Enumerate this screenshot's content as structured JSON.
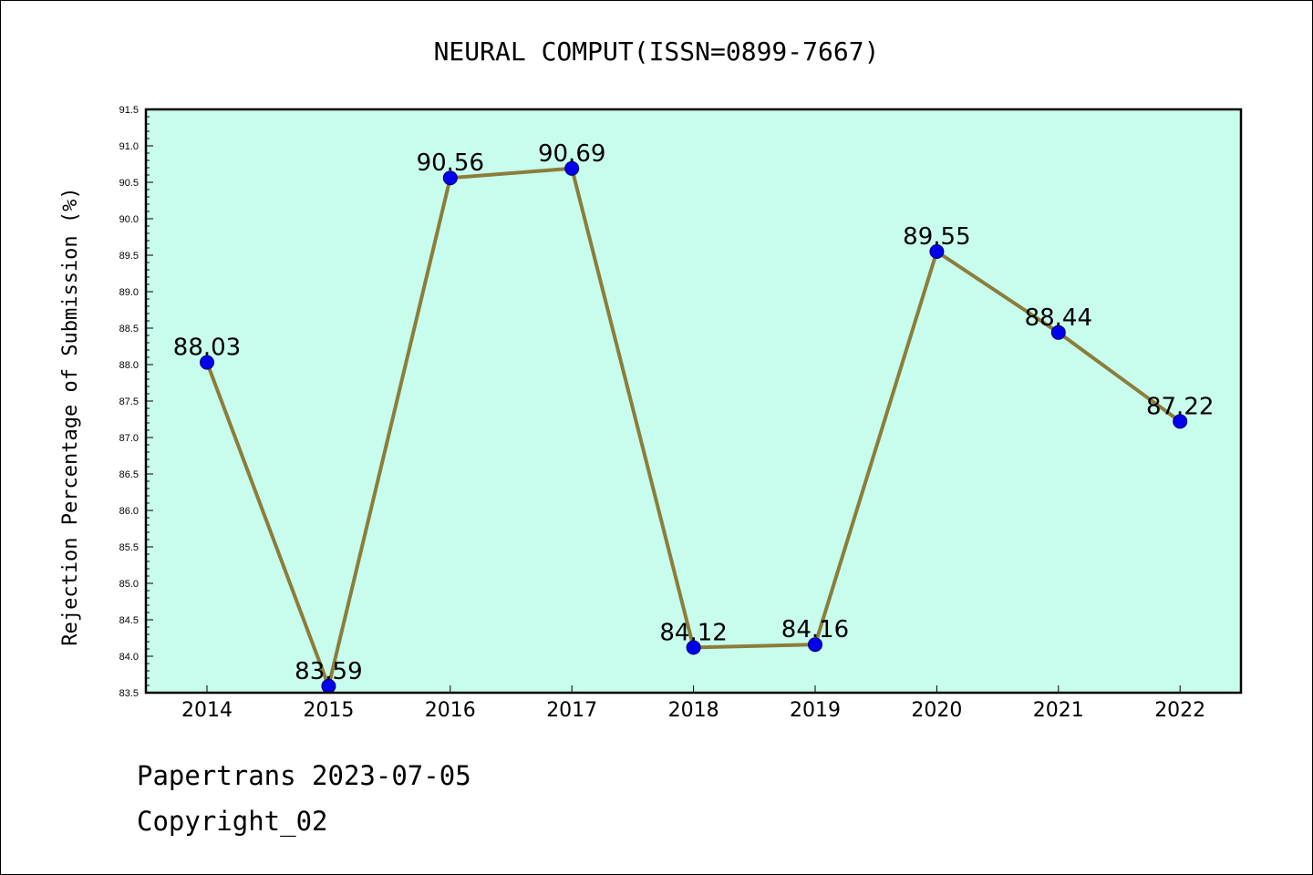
{
  "chart_data": {
    "type": "line",
    "title": "NEURAL COMPUT(ISSN=0899-7667)",
    "xlabel": "",
    "ylabel": "Rejection Percentage of Submission (%)",
    "categories": [
      "2014",
      "2015",
      "2016",
      "2017",
      "2018",
      "2019",
      "2020",
      "2021",
      "2022"
    ],
    "values": [
      88.03,
      83.59,
      90.56,
      90.69,
      84.12,
      84.16,
      89.55,
      88.44,
      87.22
    ],
    "data_labels": [
      "88.03",
      "83.59",
      "90.56",
      "90.69",
      "84.12",
      "84.16",
      "89.55",
      "88.44",
      "87.22"
    ],
    "ylim": [
      83.5,
      91.5
    ],
    "yticks": [
      "83.5",
      "84.0",
      "84.5",
      "85.0",
      "85.5",
      "86.0",
      "86.5",
      "87.0",
      "87.5",
      "88.0",
      "88.5",
      "89.0",
      "89.5",
      "90.0",
      "90.5",
      "91.0",
      "91.5"
    ],
    "grid": false,
    "colors": {
      "plot_background": "#c8fced",
      "line": "#8b7d3a",
      "marker": "#0000ee"
    }
  },
  "footer": {
    "line1": "Papertrans 2023-07-05",
    "line2": "Copyright_02"
  }
}
